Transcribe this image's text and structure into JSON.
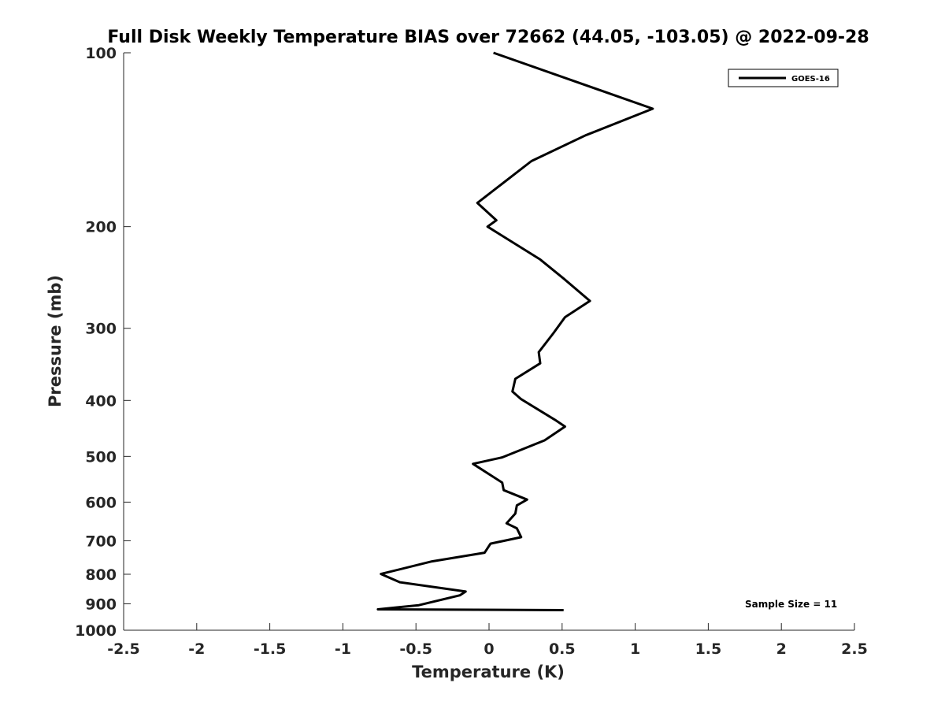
{
  "chart_data": {
    "type": "line",
    "title": "Full Disk Weekly Temperature BIAS over 72662 (44.05, -103.05) @ 2022-09-28",
    "xlabel": "Temperature (K)",
    "ylabel": "Pressure (mb)",
    "xlim": [
      -2.5,
      2.5
    ],
    "ylim": [
      100,
      1000
    ],
    "y_scale": "log",
    "y_reversed": true,
    "grid": false,
    "legend_position": "top-right",
    "x_ticks": [
      -2.5,
      -2,
      -1.5,
      -1,
      -0.5,
      0,
      0.5,
      1,
      1.5,
      2,
      2.5
    ],
    "x_tick_labels": [
      "-2.5",
      "-2",
      "-1.5",
      "-1",
      "-0.5",
      "0",
      "0.5",
      "1",
      "1.5",
      "2",
      "2.5"
    ],
    "y_ticks": [
      100,
      200,
      300,
      400,
      500,
      600,
      700,
      800,
      900,
      1000
    ],
    "y_tick_labels": [
      "100",
      "200",
      "300",
      "400",
      "500",
      "600",
      "700",
      "800",
      "900",
      "1000"
    ],
    "series": [
      {
        "name": "GOES-16",
        "color": "#000000",
        "points": [
          [
            0.03,
            100
          ],
          [
            1.12,
            125
          ],
          [
            0.66,
            139
          ],
          [
            0.29,
            154
          ],
          [
            -0.08,
            182
          ],
          [
            0.05,
            195
          ],
          [
            -0.01,
            200
          ],
          [
            0.35,
            228
          ],
          [
            0.51,
            246
          ],
          [
            0.69,
            269
          ],
          [
            0.52,
            287
          ],
          [
            0.44,
            306
          ],
          [
            0.34,
            330
          ],
          [
            0.35,
            345
          ],
          [
            0.18,
            367
          ],
          [
            0.16,
            386
          ],
          [
            0.22,
            398
          ],
          [
            0.45,
            432
          ],
          [
            0.52,
            444
          ],
          [
            0.38,
            469
          ],
          [
            0.09,
            502
          ],
          [
            -0.11,
            515
          ],
          [
            0.09,
            555
          ],
          [
            0.1,
            572
          ],
          [
            0.26,
            594
          ],
          [
            0.19,
            608
          ],
          [
            0.18,
            628
          ],
          [
            0.12,
            653
          ],
          [
            0.19,
            666
          ],
          [
            0.22,
            690
          ],
          [
            0.01,
            708
          ],
          [
            -0.03,
            734
          ],
          [
            -0.39,
            760
          ],
          [
            -0.74,
            799
          ],
          [
            -0.61,
            826
          ],
          [
            -0.16,
            857
          ],
          [
            -0.2,
            870
          ],
          [
            -0.48,
            905
          ],
          [
            -0.76,
            920
          ],
          [
            0.51,
            923
          ]
        ]
      }
    ],
    "annotation": "Sample Size = 11"
  }
}
